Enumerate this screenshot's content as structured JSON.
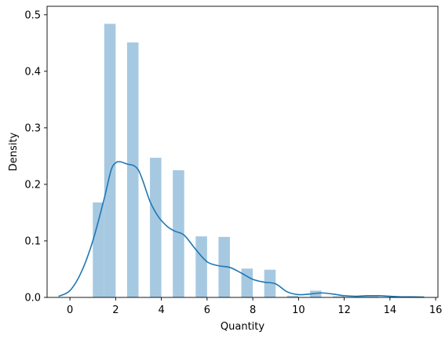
{
  "chart_data": {
    "type": "bar",
    "title": "",
    "xlabel": "Quantity",
    "ylabel": "Density",
    "xlim": [
      -1.0,
      16.1
    ],
    "ylim": [
      0,
      0.515
    ],
    "xticks": [
      0,
      2,
      4,
      6,
      8,
      10,
      12,
      14,
      16
    ],
    "yticks": [
      0.0,
      0.1,
      0.2,
      0.3,
      0.4,
      0.5
    ],
    "xtick_labels": [
      "0",
      "2",
      "4",
      "6",
      "8",
      "10",
      "12",
      "14",
      "16"
    ],
    "ytick_labels": [
      "0.0",
      "0.1",
      "0.2",
      "0.3",
      "0.4",
      "0.5"
    ],
    "grid": false,
    "legend": "none",
    "colors": {
      "bars": "#a6c9e1",
      "kde": "#1f77b4",
      "axes": "#000000"
    },
    "histogram": {
      "bins": [
        {
          "x0": 1.0,
          "x1": 1.5,
          "density": 0.168
        },
        {
          "x0": 1.5,
          "x1": 2.0,
          "density": 0.484
        },
        {
          "x0": 2.5,
          "x1": 3.0,
          "density": 0.451
        },
        {
          "x0": 3.5,
          "x1": 4.0,
          "density": 0.247
        },
        {
          "x0": 4.5,
          "x1": 5.0,
          "density": 0.225
        },
        {
          "x0": 5.5,
          "x1": 6.0,
          "density": 0.108
        },
        {
          "x0": 6.5,
          "x1": 7.0,
          "density": 0.107
        },
        {
          "x0": 7.5,
          "x1": 8.0,
          "density": 0.051
        },
        {
          "x0": 8.5,
          "x1": 9.0,
          "density": 0.049
        },
        {
          "x0": 9.5,
          "x1": 10.0,
          "density": 0.003
        },
        {
          "x0": 10.5,
          "x1": 11.0,
          "density": 0.012
        },
        {
          "x0": 11.5,
          "x1": 12.0,
          "density": 0.002
        },
        {
          "x0": 12.5,
          "x1": 13.0,
          "density": 0.002
        },
        {
          "x0": 13.0,
          "x1": 13.5,
          "density": 0.003
        },
        {
          "x0": 14.0,
          "x1": 14.5,
          "density": 0.001
        }
      ]
    },
    "kde": {
      "x": [
        -0.5,
        0.0,
        0.5,
        1.0,
        1.5,
        1.8,
        2.0,
        2.2,
        2.5,
        2.8,
        3.0,
        3.2,
        3.5,
        3.8,
        4.0,
        4.3,
        4.6,
        5.0,
        5.5,
        6.0,
        6.5,
        7.0,
        7.5,
        8.0,
        8.5,
        9.0,
        9.5,
        10.0,
        10.5,
        11.0,
        11.5,
        12.0,
        12.5,
        13.0,
        13.5,
        14.0,
        14.5,
        15.0,
        15.5
      ],
      "y": [
        0.002,
        0.012,
        0.045,
        0.1,
        0.175,
        0.225,
        0.238,
        0.24,
        0.236,
        0.233,
        0.225,
        0.205,
        0.17,
        0.147,
        0.136,
        0.124,
        0.117,
        0.11,
        0.085,
        0.063,
        0.056,
        0.053,
        0.043,
        0.032,
        0.027,
        0.024,
        0.01,
        0.005,
        0.006,
        0.008,
        0.006,
        0.003,
        0.002,
        0.003,
        0.003,
        0.002,
        0.001,
        0.001,
        0.0005
      ]
    }
  }
}
